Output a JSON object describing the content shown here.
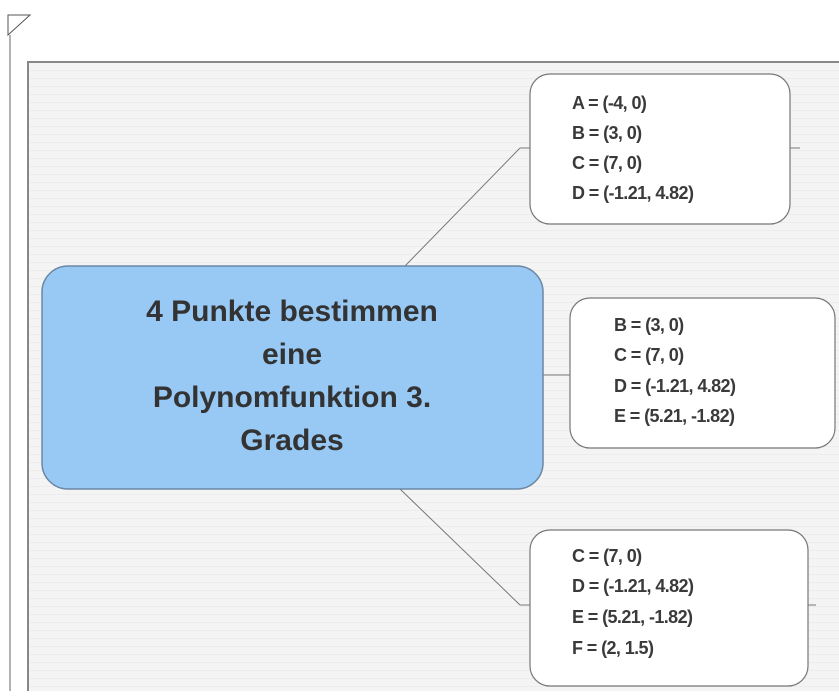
{
  "central_node": {
    "lines": [
      "4 Punkte bestimmen",
      "eine",
      "Polynomfunktion 3.",
      "Grades"
    ]
  },
  "child_nodes": [
    {
      "lines": [
        "A = (-4, 0)",
        "B = (3, 0)",
        "C = (7, 0)",
        "D = (-1.21, 4.82)"
      ]
    },
    {
      "lines": [
        "B = (3, 0)",
        "C = (7, 0)",
        "D = (-1.21, 4.82)",
        "E = (5.21, -1.82)"
      ]
    },
    {
      "lines": [
        "C = (7, 0)",
        "D = (-1.21, 4.82)",
        "E = (5.21, -1.82)",
        "F = (2, 1.5)"
      ]
    }
  ]
}
